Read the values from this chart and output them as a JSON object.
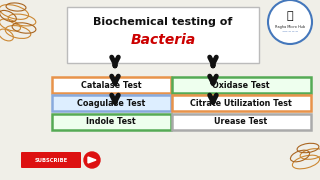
{
  "title_line1": "Biochemical testing of",
  "title_line2": "Bacteria",
  "title_color1": "#111111",
  "title_color2": "#cc0000",
  "bg_color": "#f0efe8",
  "left_boxes": [
    {
      "label": "Catalase Test",
      "border": "#e8934a",
      "bg": "#ffffff"
    },
    {
      "label": "Coagulase Test",
      "border": "#88aadd",
      "bg": "#ddeeff"
    },
    {
      "label": "Indole Test",
      "border": "#55aa55",
      "bg": "#eeffee"
    }
  ],
  "right_boxes": [
    {
      "label": "Oxidase Test",
      "border": "#55aa55",
      "bg": "#eeffee"
    },
    {
      "label": "Citrate Utilization Test",
      "border": "#e8934a",
      "bg": "#ffffff"
    },
    {
      "label": "Urease Test",
      "border": "#aaaaaa",
      "bg": "#ffffff"
    }
  ],
  "arrow_color": "#111111",
  "subscribe_bg": "#dd1111",
  "subscribe_text": "SUBSCRIBE",
  "left_ellipses": [
    [
      14,
      168,
      30,
      13,
      -15,
      "#cc8833"
    ],
    [
      22,
      160,
      28,
      11,
      -10,
      "#cc8833"
    ],
    [
      10,
      155,
      22,
      10,
      -20,
      "#cc8833"
    ],
    [
      18,
      148,
      26,
      12,
      -12,
      "#cc8833"
    ],
    [
      8,
      164,
      18,
      9,
      -25,
      "#aa6622"
    ],
    [
      16,
      173,
      20,
      8,
      -5,
      "#aa6622"
    ],
    [
      6,
      145,
      16,
      10,
      -30,
      "#cc8833"
    ],
    [
      24,
      152,
      24,
      10,
      -8,
      "#aa6622"
    ]
  ],
  "right_ellipses": [
    [
      306,
      18,
      28,
      12,
      15,
      "#cc8833"
    ],
    [
      312,
      26,
      24,
      10,
      10,
      "#cc8833"
    ],
    [
      300,
      24,
      20,
      10,
      20,
      "#aa6622"
    ],
    [
      308,
      32,
      22,
      9,
      8,
      "#aa6622"
    ]
  ]
}
